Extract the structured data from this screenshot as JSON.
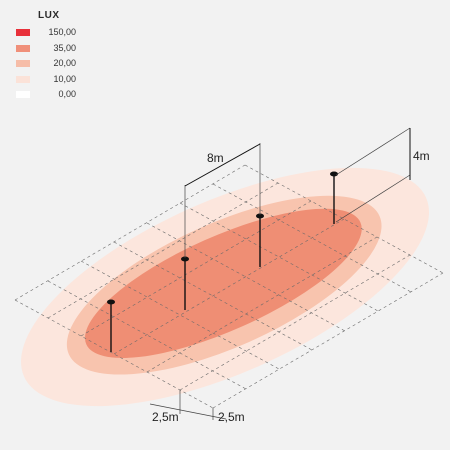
{
  "legend": {
    "title": "LUX",
    "items": [
      {
        "value": "150,00",
        "color": "#e8303a"
      },
      {
        "value": "35,00",
        "color": "#f0907a"
      },
      {
        "value": "20,00",
        "color": "#f6bda8"
      },
      {
        "value": "10,00",
        "color": "#fbe2d8"
      },
      {
        "value": "0,00",
        "color": "#ffffff"
      }
    ]
  },
  "dimensions": {
    "span": "8m",
    "height": "4m",
    "spacing_left": "2,5m",
    "spacing_right": "2,5m"
  },
  "zone_colors": {
    "outer": "#fce6dd",
    "mid": "#f8c4ae",
    "inner": "#ef8e74",
    "core": "#ec8068"
  },
  "luminaire_count": 4
}
